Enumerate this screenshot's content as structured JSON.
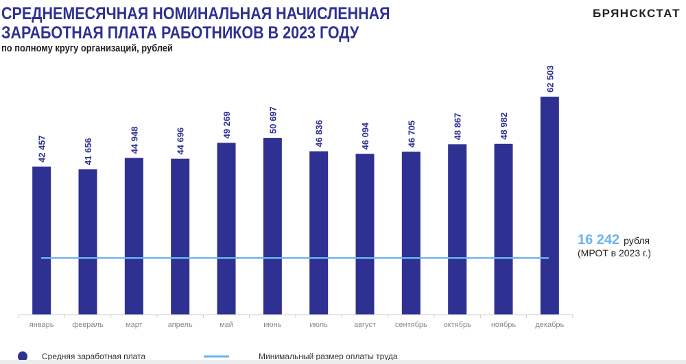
{
  "header": {
    "title_line1": "СРЕДНЕМЕСЯЧНАЯ НОМИНАЛЬНАЯ НАЧИСЛЕННАЯ",
    "title_line2": "ЗАРАБОТНАЯ ПЛАТА РАБОТНИКОВ В 2023 ГОДУ",
    "subtitle": "по полному кругу организаций, рублей",
    "brand": "БРЯНСКСТАТ"
  },
  "chart_data": {
    "type": "bar",
    "title": "СРЕДНЕМЕСЯЧНАЯ НОМИНАЛЬНАЯ НАЧИСЛЕННАЯ ЗАРАБОТНАЯ ПЛАТА РАБОТНИКОВ В 2023 ГОДУ",
    "subtitle": "по полному кругу организаций, рублей",
    "categories": [
      "январь",
      "февраль",
      "март",
      "апрель",
      "май",
      "июнь",
      "июль",
      "август",
      "сентябрь",
      "октябрь",
      "ноябрь",
      "декабрь"
    ],
    "series": [
      {
        "name": "Средняя заработная плата",
        "values": [
          42457,
          41656,
          44948,
          44696,
          49269,
          50697,
          46836,
          46094,
          46705,
          48867,
          48982,
          62503
        ],
        "labels": [
          "42 457",
          "41 656",
          "44 948",
          "44 696",
          "49 269",
          "50 697",
          "46 836",
          "46 094",
          "46 705",
          "48 867",
          "48 982",
          "62 503"
        ],
        "color": "#2e3192"
      }
    ],
    "reference_line": {
      "name": "Минимальный размер оплаты труда",
      "value": 16242,
      "value_label": "16 242",
      "unit_label": "рубля",
      "note": "(МРОТ в 2023 г.)",
      "color": "#6cb4ee"
    },
    "ylim": [
      0,
      62503
    ],
    "grid": false,
    "legend": "bottom-left"
  }
}
